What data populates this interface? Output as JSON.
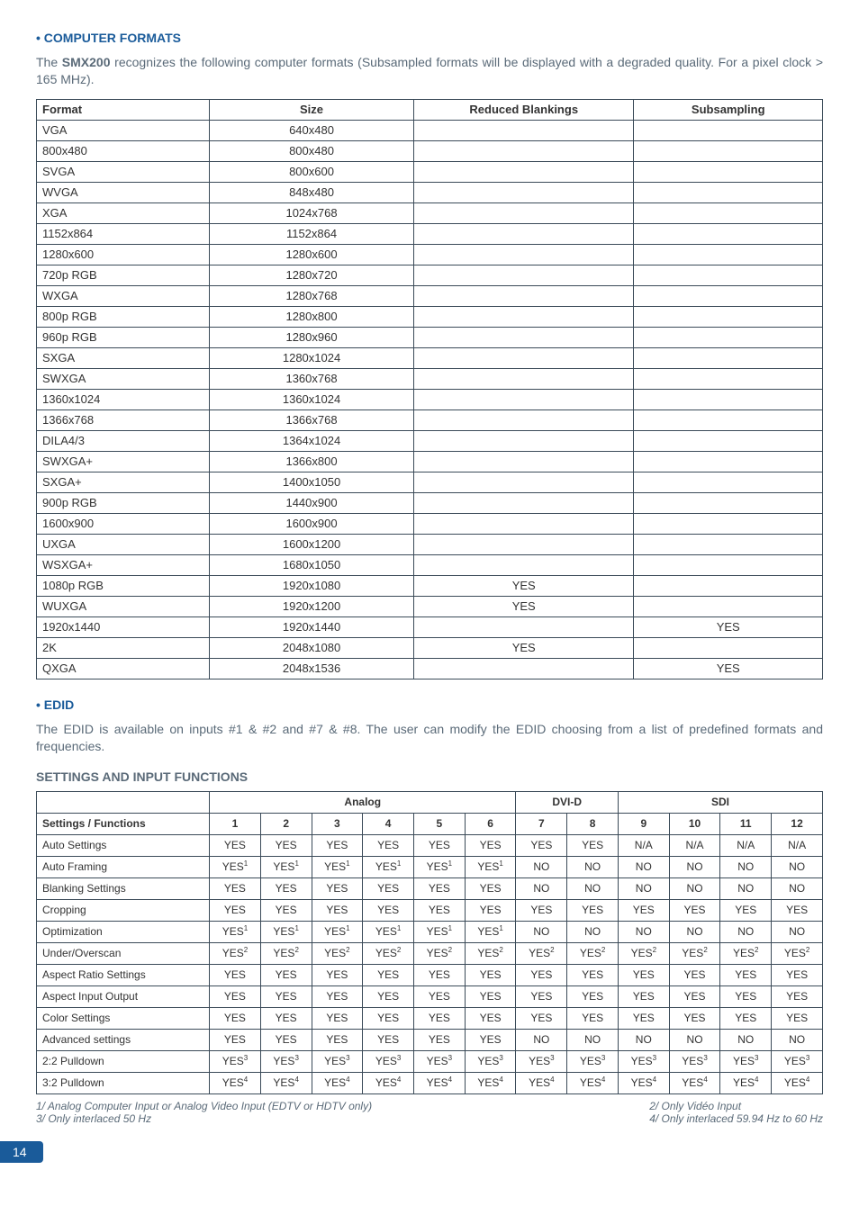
{
  "colors": {
    "heading_blue": "#1a5b9a",
    "body_grey": "#5a6a78",
    "border": "#3a4a58",
    "page_number_bg": "#1a5b9a",
    "page_number_fg": "#ffffff",
    "background": "#ffffff"
  },
  "typography": {
    "heading_size_pt": 11,
    "body_size_pt": 11,
    "table_size_pt": 10,
    "settings_table_size_pt": 9,
    "footnote_size_pt": 9
  },
  "section1": {
    "heading": "• COMPUTER FORMATS",
    "intro_pre": "The ",
    "intro_bold": "SMX200",
    "intro_post": " recognizes the following computer formats (Subsampled formats will be displayed with a degraded quality. For a pixel clock > 165 MHz)."
  },
  "formats_table": {
    "headers": [
      "Format",
      "Size",
      "Reduced Blankings",
      "Subsampling"
    ],
    "col_widths_pct": [
      22,
      26,
      28,
      24
    ],
    "rows": [
      {
        "format": "VGA",
        "size": "640x480",
        "rb": "",
        "sub": ""
      },
      {
        "format": "800x480",
        "size": "800x480",
        "rb": "",
        "sub": ""
      },
      {
        "format": "SVGA",
        "size": "800x600",
        "rb": "",
        "sub": ""
      },
      {
        "format": "WVGA",
        "size": "848x480",
        "rb": "",
        "sub": ""
      },
      {
        "format": "XGA",
        "size": "1024x768",
        "rb": "",
        "sub": ""
      },
      {
        "format": "1152x864",
        "size": "1152x864",
        "rb": "",
        "sub": ""
      },
      {
        "format": "1280x600",
        "size": "1280x600",
        "rb": "",
        "sub": ""
      },
      {
        "format": "720p RGB",
        "size": "1280x720",
        "rb": "",
        "sub": ""
      },
      {
        "format": "WXGA",
        "size": "1280x768",
        "rb": "",
        "sub": ""
      },
      {
        "format": "800p RGB",
        "size": "1280x800",
        "rb": "",
        "sub": ""
      },
      {
        "format": "960p RGB",
        "size": "1280x960",
        "rb": "",
        "sub": ""
      },
      {
        "format": "SXGA",
        "size": "1280x1024",
        "rb": "",
        "sub": ""
      },
      {
        "format": "SWXGA",
        "size": "1360x768",
        "rb": "",
        "sub": ""
      },
      {
        "format": "1360x1024",
        "size": "1360x1024",
        "rb": "",
        "sub": ""
      },
      {
        "format": "1366x768",
        "size": "1366x768",
        "rb": "",
        "sub": ""
      },
      {
        "format": "DILA4/3",
        "size": "1364x1024",
        "rb": "",
        "sub": ""
      },
      {
        "format": "SWXGA+",
        "size": "1366x800",
        "rb": "",
        "sub": ""
      },
      {
        "format": "SXGA+",
        "size": "1400x1050",
        "rb": "",
        "sub": ""
      },
      {
        "format": "900p RGB",
        "size": "1440x900",
        "rb": "",
        "sub": ""
      },
      {
        "format": "1600x900",
        "size": "1600x900",
        "rb": "",
        "sub": ""
      },
      {
        "format": "UXGA",
        "size": "1600x1200",
        "rb": "",
        "sub": ""
      },
      {
        "format": "WSXGA+",
        "size": "1680x1050",
        "rb": "",
        "sub": ""
      },
      {
        "format": "1080p RGB",
        "size": "1920x1080",
        "rb": "YES",
        "sub": ""
      },
      {
        "format": "WUXGA",
        "size": "1920x1200",
        "rb": "YES",
        "sub": ""
      },
      {
        "format": "1920x1440",
        "size": "1920x1440",
        "rb": "",
        "sub": "YES"
      },
      {
        "format": "2K",
        "size": "2048x1080",
        "rb": "YES",
        "sub": ""
      },
      {
        "format": "QXGA",
        "size": "2048x1536",
        "rb": "",
        "sub": "YES"
      }
    ]
  },
  "section2": {
    "heading": "• EDID",
    "text": "The EDID is available on inputs #1 & #2 and #7 & #8. The user can modify the EDID choosing from a list of predefined formats and frequencies."
  },
  "section3": {
    "heading": "SETTINGS AND INPUT FUNCTIONS"
  },
  "settings_table": {
    "group_headers": [
      "Analog",
      "DVI-D",
      "SDI"
    ],
    "group_spans": [
      6,
      2,
      4
    ],
    "col_headers": [
      "Settings / Functions",
      "1",
      "2",
      "3",
      "4",
      "5",
      "6",
      "7",
      "8",
      "9",
      "10",
      "11",
      "12"
    ],
    "label_col_width_pct": 22,
    "data_col_width_pct": 6.5,
    "rows": [
      {
        "label": "Auto Settings",
        "cells": [
          {
            "t": "YES"
          },
          {
            "t": "YES"
          },
          {
            "t": "YES"
          },
          {
            "t": "YES"
          },
          {
            "t": "YES"
          },
          {
            "t": "YES"
          },
          {
            "t": "YES"
          },
          {
            "t": "YES"
          },
          {
            "t": "N/A"
          },
          {
            "t": "N/A"
          },
          {
            "t": "N/A"
          },
          {
            "t": "N/A"
          }
        ]
      },
      {
        "label": "Auto Framing",
        "cells": [
          {
            "t": "YES",
            "s": "1"
          },
          {
            "t": "YES",
            "s": "1"
          },
          {
            "t": "YES",
            "s": "1"
          },
          {
            "t": "YES",
            "s": "1"
          },
          {
            "t": "YES",
            "s": "1"
          },
          {
            "t": "YES",
            "s": "1"
          },
          {
            "t": "NO"
          },
          {
            "t": "NO"
          },
          {
            "t": "NO"
          },
          {
            "t": "NO"
          },
          {
            "t": "NO"
          },
          {
            "t": "NO"
          }
        ]
      },
      {
        "label": "Blanking Settings",
        "cells": [
          {
            "t": "YES"
          },
          {
            "t": "YES"
          },
          {
            "t": "YES"
          },
          {
            "t": "YES"
          },
          {
            "t": "YES"
          },
          {
            "t": "YES"
          },
          {
            "t": "NO"
          },
          {
            "t": "NO"
          },
          {
            "t": "NO"
          },
          {
            "t": "NO"
          },
          {
            "t": "NO"
          },
          {
            "t": "NO"
          }
        ]
      },
      {
        "label": "Cropping",
        "cells": [
          {
            "t": "YES"
          },
          {
            "t": "YES"
          },
          {
            "t": "YES"
          },
          {
            "t": "YES"
          },
          {
            "t": "YES"
          },
          {
            "t": "YES"
          },
          {
            "t": "YES"
          },
          {
            "t": "YES"
          },
          {
            "t": "YES"
          },
          {
            "t": "YES"
          },
          {
            "t": "YES"
          },
          {
            "t": "YES"
          }
        ]
      },
      {
        "label": "Optimization",
        "cells": [
          {
            "t": "YES",
            "s": "1"
          },
          {
            "t": "YES",
            "s": "1"
          },
          {
            "t": "YES",
            "s": "1"
          },
          {
            "t": "YES",
            "s": "1"
          },
          {
            "t": "YES",
            "s": "1"
          },
          {
            "t": "YES",
            "s": "1"
          },
          {
            "t": "NO"
          },
          {
            "t": "NO"
          },
          {
            "t": "NO"
          },
          {
            "t": "NO"
          },
          {
            "t": "NO"
          },
          {
            "t": "NO"
          }
        ]
      },
      {
        "label": "Under/Overscan",
        "cells": [
          {
            "t": "YES",
            "s": "2"
          },
          {
            "t": "YES",
            "s": "2"
          },
          {
            "t": "YES",
            "s": "2"
          },
          {
            "t": "YES",
            "s": "2"
          },
          {
            "t": "YES",
            "s": "2"
          },
          {
            "t": "YES",
            "s": "2"
          },
          {
            "t": "YES",
            "s": "2"
          },
          {
            "t": "YES",
            "s": "2"
          },
          {
            "t": "YES",
            "s": "2"
          },
          {
            "t": "YES",
            "s": "2"
          },
          {
            "t": "YES",
            "s": "2"
          },
          {
            "t": "YES",
            "s": "2"
          }
        ]
      },
      {
        "label": "Aspect Ratio Settings",
        "cells": [
          {
            "t": "YES"
          },
          {
            "t": "YES"
          },
          {
            "t": "YES"
          },
          {
            "t": "YES"
          },
          {
            "t": "YES"
          },
          {
            "t": "YES"
          },
          {
            "t": "YES"
          },
          {
            "t": "YES"
          },
          {
            "t": "YES"
          },
          {
            "t": "YES"
          },
          {
            "t": "YES"
          },
          {
            "t": "YES"
          }
        ]
      },
      {
        "label": "Aspect Input Output",
        "cells": [
          {
            "t": "YES"
          },
          {
            "t": "YES"
          },
          {
            "t": "YES"
          },
          {
            "t": "YES"
          },
          {
            "t": "YES"
          },
          {
            "t": "YES"
          },
          {
            "t": "YES"
          },
          {
            "t": "YES"
          },
          {
            "t": "YES"
          },
          {
            "t": "YES"
          },
          {
            "t": "YES"
          },
          {
            "t": "YES"
          }
        ]
      },
      {
        "label": "Color Settings",
        "cells": [
          {
            "t": "YES"
          },
          {
            "t": "YES"
          },
          {
            "t": "YES"
          },
          {
            "t": "YES"
          },
          {
            "t": "YES"
          },
          {
            "t": "YES"
          },
          {
            "t": "YES"
          },
          {
            "t": "YES"
          },
          {
            "t": "YES"
          },
          {
            "t": "YES"
          },
          {
            "t": "YES"
          },
          {
            "t": "YES"
          }
        ]
      },
      {
        "label": "Advanced settings",
        "cells": [
          {
            "t": "YES"
          },
          {
            "t": "YES"
          },
          {
            "t": "YES"
          },
          {
            "t": "YES"
          },
          {
            "t": "YES"
          },
          {
            "t": "YES"
          },
          {
            "t": "NO"
          },
          {
            "t": "NO"
          },
          {
            "t": "NO"
          },
          {
            "t": "NO"
          },
          {
            "t": "NO"
          },
          {
            "t": "NO"
          }
        ]
      },
      {
        "label": "2:2 Pulldown",
        "cells": [
          {
            "t": "YES",
            "s": "3"
          },
          {
            "t": "YES",
            "s": "3"
          },
          {
            "t": "YES",
            "s": "3"
          },
          {
            "t": "YES",
            "s": "3"
          },
          {
            "t": "YES",
            "s": "3"
          },
          {
            "t": "YES",
            "s": "3"
          },
          {
            "t": "YES",
            "s": "3"
          },
          {
            "t": "YES",
            "s": "3"
          },
          {
            "t": "YES",
            "s": "3"
          },
          {
            "t": "YES",
            "s": "3"
          },
          {
            "t": "YES",
            "s": "3"
          },
          {
            "t": "YES",
            "s": "3"
          }
        ]
      },
      {
        "label": "3:2 Pulldown",
        "cells": [
          {
            "t": "YES",
            "s": "4"
          },
          {
            "t": "YES",
            "s": "4"
          },
          {
            "t": "YES",
            "s": "4"
          },
          {
            "t": "YES",
            "s": "4"
          },
          {
            "t": "YES",
            "s": "4"
          },
          {
            "t": "YES",
            "s": "4"
          },
          {
            "t": "YES",
            "s": "4"
          },
          {
            "t": "YES",
            "s": "4"
          },
          {
            "t": "YES",
            "s": "4"
          },
          {
            "t": "YES",
            "s": "4"
          },
          {
            "t": "YES",
            "s": "4"
          },
          {
            "t": "YES",
            "s": "4"
          }
        ]
      }
    ]
  },
  "footnotes": {
    "left": [
      "1/ Analog Computer Input or Analog Video Input (EDTV or HDTV only)",
      "3/ Only interlaced 50 Hz"
    ],
    "right": [
      "2/ Only Vidéo Input",
      "4/ Only interlaced 59.94 Hz to 60 Hz"
    ]
  },
  "page_number": "14"
}
